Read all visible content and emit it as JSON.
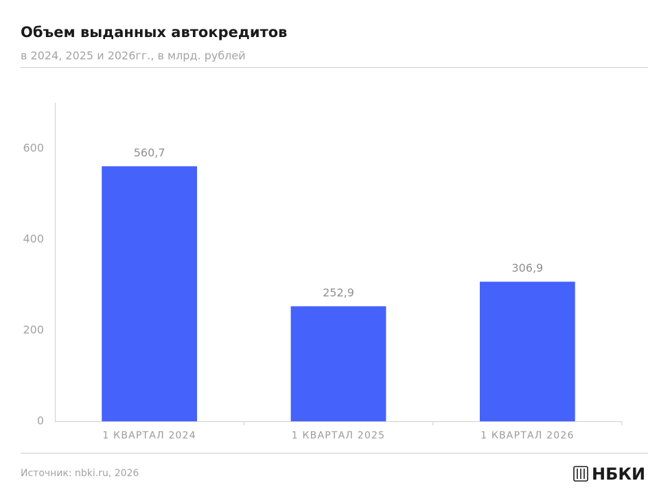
{
  "chart_data": {
    "type": "bar",
    "title": "Объем выданных автокредитов",
    "subtitle": "в 2024, 2025 и 2026гг., в млрд. рублей",
    "categories": [
      "1 КВАРТАЛ 2024",
      "1 КВАРТАЛ 2025",
      "1 КВАРТАЛ 2026"
    ],
    "values": [
      560.7,
      252.9,
      306.9
    ],
    "value_labels": [
      "560,7",
      "252,9",
      "306,9"
    ],
    "color": "#4562fb",
    "ylim": [
      0,
      700
    ],
    "yticks": [
      0,
      200,
      400,
      600
    ],
    "grid": false,
    "source": "Источник: nbki.ru, 2026",
    "logo": "НБКИ"
  }
}
